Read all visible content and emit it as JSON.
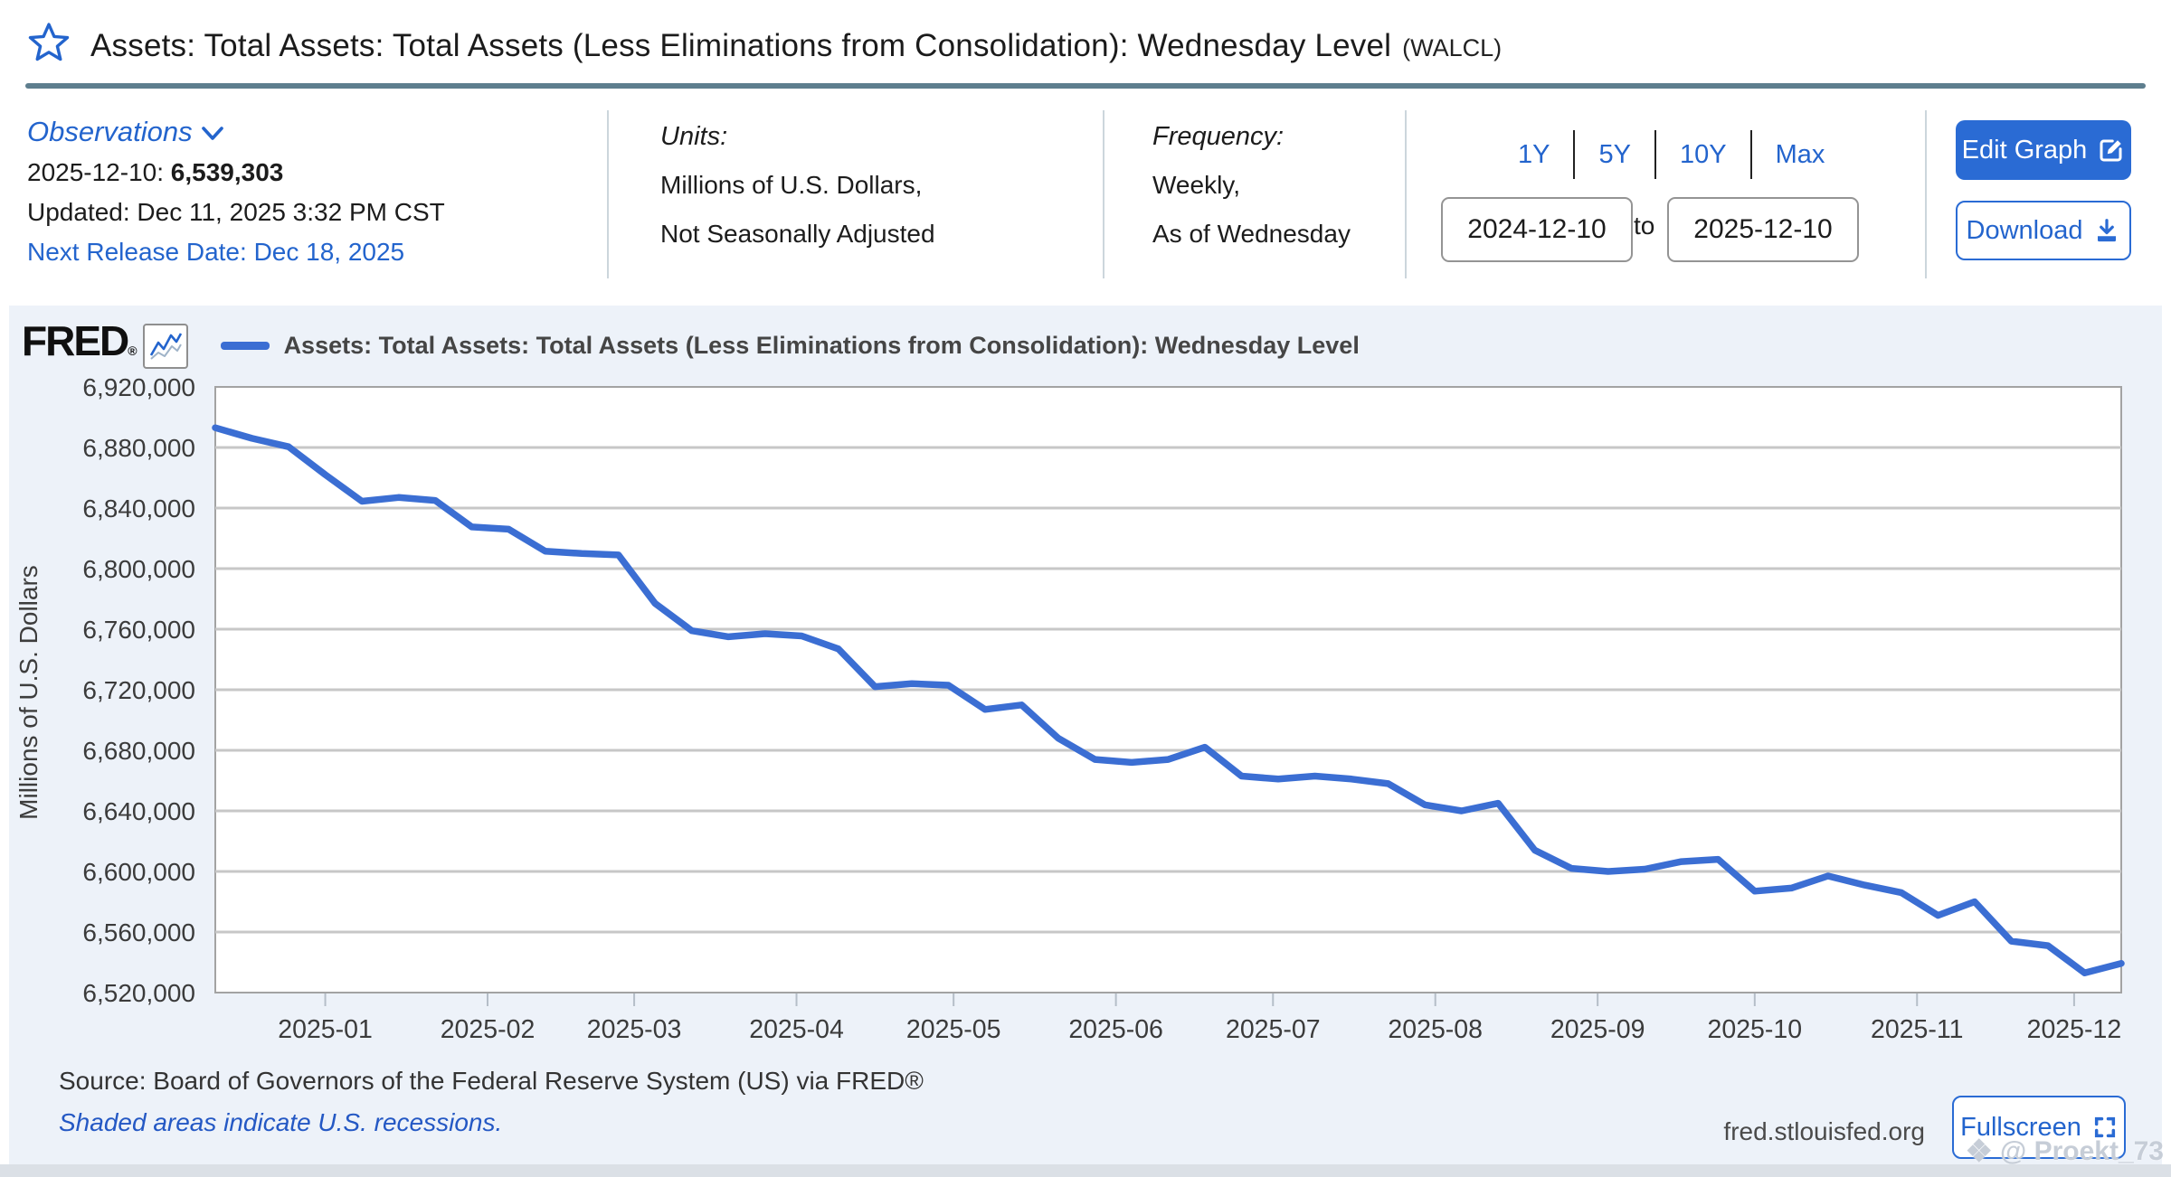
{
  "header": {
    "title": "Assets: Total Assets: Total Assets (Less Eliminations from Consolidation): Wednesday Level",
    "ticker": "(WALCL)"
  },
  "observations": {
    "label": "Observations",
    "latest_date": "2025-12-10:",
    "latest_value": "6,539,303",
    "updated": "Updated: Dec 11, 2025 3:32 PM CST",
    "next_release": "Next Release Date: Dec 18, 2025"
  },
  "units": {
    "label": "Units:",
    "line1": "Millions of U.S. Dollars,",
    "line2": "Not Seasonally Adjusted"
  },
  "frequency": {
    "label": "Frequency:",
    "line1": "Weekly,",
    "line2": "As of Wednesday"
  },
  "range": {
    "options": [
      "1Y",
      "5Y",
      "10Y",
      "Max"
    ],
    "start": "2024-12-10",
    "to_label": "to",
    "end": "2025-12-10"
  },
  "actions": {
    "edit_label": "Edit Graph",
    "download_label": "Download"
  },
  "graph": {
    "brand": "FRED",
    "brand_reg": "®",
    "source": "Source: Board of Governors of the Federal Reserve System (US) via FRED®",
    "recession_note": "Shaded areas indicate U.S. recessions.",
    "site": "fred.stlouisfed.org",
    "fullscreen_label": "Fullscreen",
    "watermark_icon": "❖",
    "watermark": "@ Proekt_73"
  },
  "colors": {
    "accent": "#2364cd",
    "button_fill": "#2a6bd4",
    "line": "#3b6ed3",
    "panel_bg": "#edf2f9",
    "grid": "#c7c7c7",
    "plot_border": "#a3a3a3"
  },
  "chart_data": {
    "type": "line",
    "title": "Assets: Total Assets: Total Assets (Less Eliminations from Consolidation): Wednesday Level",
    "xlabel": "",
    "ylabel": "Millions of U.S. Dollars",
    "ylim": [
      6520000,
      6920000
    ],
    "ytick_step": 40000,
    "grid": true,
    "legend_position": "top",
    "x_tick_labels": [
      "2025-01",
      "2025-02",
      "2025-03",
      "2025-04",
      "2025-05",
      "2025-06",
      "2025-07",
      "2025-08",
      "2025-09",
      "2025-10",
      "2025-11",
      "2025-12"
    ],
    "series": [
      {
        "name": "Assets: Total Assets: Total Assets (Less Eliminations from Consolidation): Wednesday Level",
        "color": "#3b6ed3",
        "dates": [
          "2024-12-11",
          "2024-12-18",
          "2024-12-25",
          "2025-01-01",
          "2025-01-08",
          "2025-01-15",
          "2025-01-22",
          "2025-01-29",
          "2025-02-05",
          "2025-02-12",
          "2025-02-19",
          "2025-02-26",
          "2025-03-05",
          "2025-03-12",
          "2025-03-19",
          "2025-03-26",
          "2025-04-02",
          "2025-04-09",
          "2025-04-16",
          "2025-04-23",
          "2025-04-30",
          "2025-05-07",
          "2025-05-14",
          "2025-05-21",
          "2025-05-28",
          "2025-06-04",
          "2025-06-11",
          "2025-06-18",
          "2025-06-25",
          "2025-07-02",
          "2025-07-09",
          "2025-07-16",
          "2025-07-23",
          "2025-07-30",
          "2025-08-06",
          "2025-08-13",
          "2025-08-20",
          "2025-08-27",
          "2025-09-03",
          "2025-09-10",
          "2025-09-17",
          "2025-09-24",
          "2025-10-01",
          "2025-10-08",
          "2025-10-15",
          "2025-10-22",
          "2025-10-29",
          "2025-11-05",
          "2025-11-12",
          "2025-11-19",
          "2025-11-26",
          "2025-12-03",
          "2025-12-10"
        ],
        "values": [
          6893000,
          6886000,
          6880500,
          6862000,
          6844500,
          6847000,
          6845000,
          6827500,
          6826000,
          6811500,
          6810000,
          6809000,
          6777000,
          6759000,
          6755000,
          6757000,
          6755500,
          6747000,
          6722000,
          6724000,
          6723000,
          6707000,
          6710000,
          6688000,
          6674000,
          6672000,
          6674000,
          6682000,
          6663000,
          6661000,
          6663000,
          6661000,
          6658000,
          6644000,
          6640000,
          6645000,
          6614000,
          6602000,
          6600000,
          6601500,
          6606500,
          6608000,
          6587000,
          6589000,
          6597000,
          6591000,
          6586000,
          6571000,
          6580000,
          6554000,
          6551000,
          6533000,
          6539303
        ]
      }
    ]
  }
}
